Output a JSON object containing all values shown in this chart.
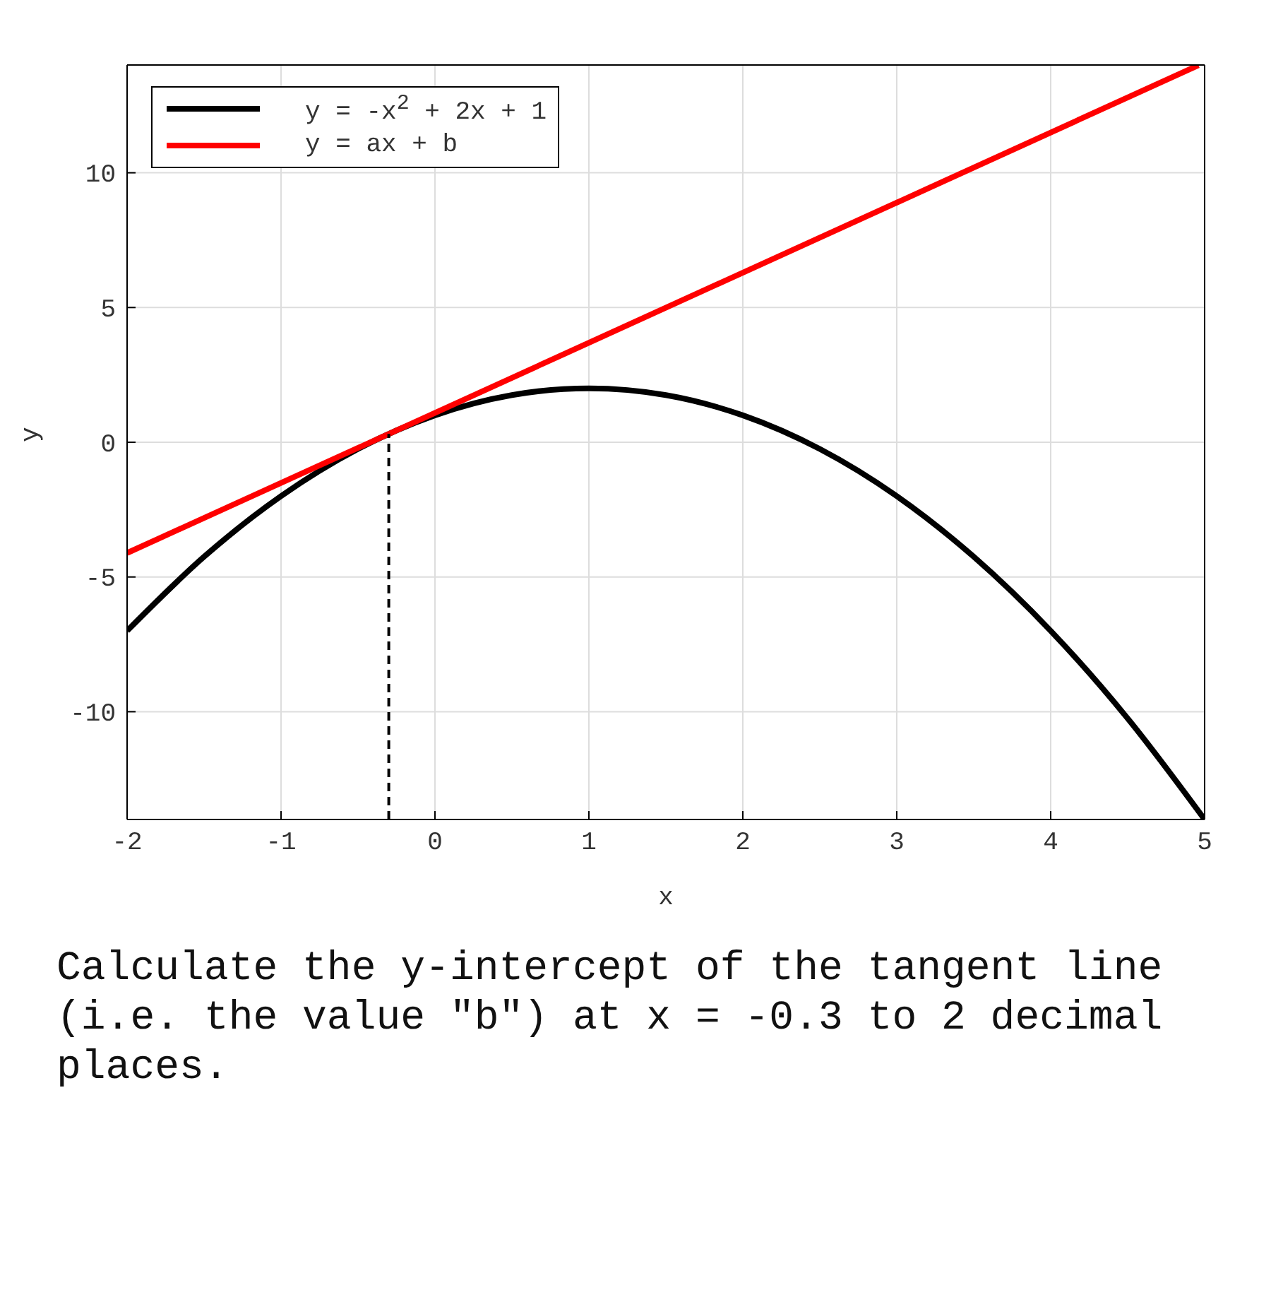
{
  "chart_data": {
    "type": "line",
    "xlabel": "x",
    "ylabel": "y",
    "xlim": [
      -2,
      5
    ],
    "ylim": [
      -14,
      14
    ],
    "xticks": [
      -2,
      -1,
      0,
      1,
      2,
      3,
      4,
      5
    ],
    "yticks": [
      -10,
      -5,
      0,
      5,
      10
    ],
    "grid": true,
    "legend": "top left",
    "annotations": [
      "Calculate the y-intercept of the tangent line (i.e. the value \"b\") at x = -0.3 to 2 decimal places."
    ],
    "series": [
      {
        "name": "y = -x$^{2}$ + 2x + 1",
        "color": "#000000",
        "x": [
          -2,
          -1.5,
          -1,
          -0.5,
          0,
          0.5,
          1,
          1.5,
          2,
          2.5,
          3,
          3.5,
          4,
          4.5,
          5
        ],
        "values": [
          -7,
          -4.25,
          -2,
          -0.25,
          1,
          1.75,
          2,
          1.75,
          1,
          -0.25,
          -2,
          -4.25,
          -7,
          -10.25,
          -14
        ]
      },
      {
        "name": "y = ax + b",
        "color": "#ff0000",
        "x": [
          -2,
          4.96
        ],
        "values": [
          -4.11,
          13.99
        ]
      },
      {
        "color": "#000000",
        "line_style": "dashed",
        "x": [
          -0.3,
          -0.3
        ],
        "values": [
          -14,
          0.31
        ]
      }
    ]
  }
}
